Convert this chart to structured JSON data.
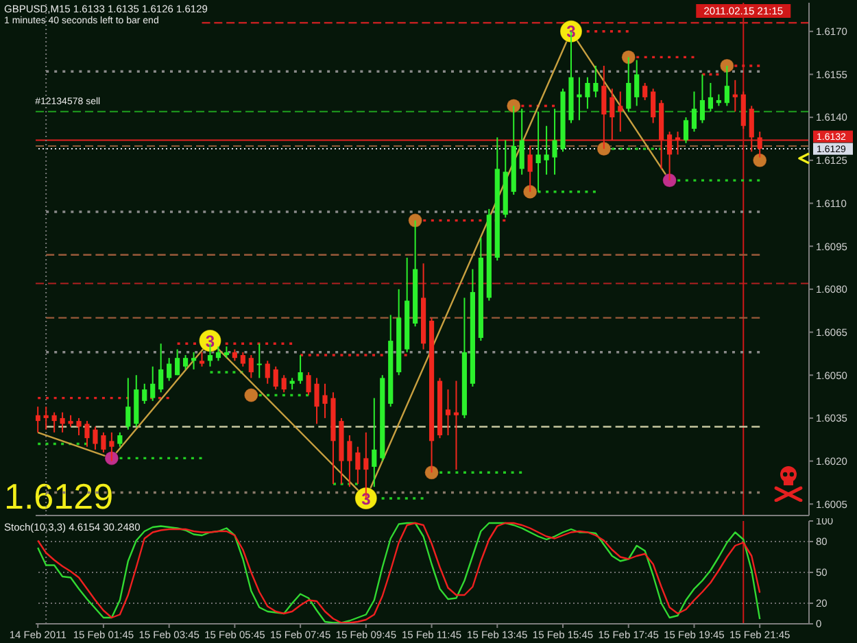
{
  "chart_data": [
    {
      "type": "candlestick",
      "title": "GBPUSD,M15 1.6133 1.6135 1.6126 1.6129",
      "subtitle": "1 minutes 40 seconds left to bar end",
      "x": [
        "2011-02-14T23:45",
        "2011-02-15T00:00",
        "2011-02-15T00:15",
        "2011-02-15T00:30",
        "2011-02-15T00:45",
        "2011-02-15T01:00",
        "2011-02-15T01:15",
        "2011-02-15T01:30",
        "2011-02-15T01:45",
        "2011-02-15T02:00",
        "2011-02-15T02:15",
        "2011-02-15T02:30",
        "2011-02-15T02:45",
        "2011-02-15T03:00",
        "2011-02-15T03:15",
        "2011-02-15T03:30",
        "2011-02-15T03:45",
        "2011-02-15T04:00",
        "2011-02-15T04:15",
        "2011-02-15T04:30",
        "2011-02-15T04:45",
        "2011-02-15T05:00",
        "2011-02-15T05:15",
        "2011-02-15T05:30",
        "2011-02-15T05:45",
        "2011-02-15T06:00",
        "2011-02-15T06:15",
        "2011-02-15T06:30",
        "2011-02-15T06:45",
        "2011-02-15T07:00",
        "2011-02-15T07:15",
        "2011-02-15T07:30",
        "2011-02-15T07:45",
        "2011-02-15T08:00",
        "2011-02-15T08:15",
        "2011-02-15T08:30",
        "2011-02-15T08:45",
        "2011-02-15T09:00",
        "2011-02-15T09:15",
        "2011-02-15T09:30",
        "2011-02-15T09:45",
        "2011-02-15T10:00",
        "2011-02-15T10:15",
        "2011-02-15T10:30",
        "2011-02-15T10:45",
        "2011-02-15T11:00",
        "2011-02-15T11:15",
        "2011-02-15T11:30",
        "2011-02-15T11:45",
        "2011-02-15T12:00",
        "2011-02-15T12:15",
        "2011-02-15T12:30",
        "2011-02-15T12:45",
        "2011-02-15T13:00",
        "2011-02-15T13:15",
        "2011-02-15T13:30",
        "2011-02-15T13:45",
        "2011-02-15T14:00",
        "2011-02-15T14:15",
        "2011-02-15T14:30",
        "2011-02-15T14:45",
        "2011-02-15T15:00",
        "2011-02-15T15:15",
        "2011-02-15T15:30",
        "2011-02-15T15:45",
        "2011-02-15T16:00",
        "2011-02-15T16:15",
        "2011-02-15T16:30",
        "2011-02-15T16:45",
        "2011-02-15T17:00",
        "2011-02-15T17:15",
        "2011-02-15T17:30",
        "2011-02-15T17:45",
        "2011-02-15T18:00",
        "2011-02-15T18:15",
        "2011-02-15T18:30",
        "2011-02-15T18:45",
        "2011-02-15T19:00",
        "2011-02-15T19:15",
        "2011-02-15T19:30",
        "2011-02-15T19:45",
        "2011-02-15T20:00",
        "2011-02-15T20:15",
        "2011-02-15T20:30",
        "2011-02-15T20:45",
        "2011-02-15T21:00",
        "2011-02-15T21:15",
        "2011-02-15T21:30",
        "2011-02-15T21:45"
      ],
      "ohlc": [
        [
          1.6036,
          1.6039,
          1.603,
          1.6034
        ],
        [
          1.6036,
          1.6039,
          1.6031,
          1.6035
        ],
        [
          1.6036,
          1.6037,
          1.603,
          1.6034
        ],
        [
          1.6035,
          1.6037,
          1.603,
          1.6033
        ],
        [
          1.6034,
          1.6036,
          1.6032,
          1.6033
        ],
        [
          1.6034,
          1.6035,
          1.6029,
          1.6032
        ],
        [
          1.6033,
          1.6034,
          1.6025,
          1.6028
        ],
        [
          1.6031,
          1.6032,
          1.6024,
          1.6026
        ],
        [
          1.6029,
          1.603,
          1.6023,
          1.6024
        ],
        [
          1.6027,
          1.603,
          1.602,
          1.6025
        ],
        [
          1.6026,
          1.603,
          1.6025,
          1.6029
        ],
        [
          1.6032,
          1.6049,
          1.6031,
          1.6039
        ],
        [
          1.6033,
          1.605,
          1.6032,
          1.6045
        ],
        [
          1.6041,
          1.6047,
          1.604,
          1.6045
        ],
        [
          1.6042,
          1.6053,
          1.6041,
          1.6047
        ],
        [
          1.6045,
          1.6061,
          1.6044,
          1.6052
        ],
        [
          1.6049,
          1.6056,
          1.6048,
          1.6054
        ],
        [
          1.605,
          1.6059,
          1.605,
          1.6056
        ],
        [
          1.6053,
          1.6057,
          1.6052,
          1.6056
        ],
        [
          1.6055,
          1.6058,
          1.6052,
          1.6056
        ],
        [
          1.6055,
          1.6058,
          1.6053,
          1.6054
        ],
        [
          1.6055,
          1.6061,
          1.6053,
          1.6057
        ],
        [
          1.6056,
          1.606,
          1.6055,
          1.6058
        ],
        [
          1.6057,
          1.606,
          1.6056,
          1.6058
        ],
        [
          1.6058,
          1.6059,
          1.6055,
          1.6056
        ],
        [
          1.6057,
          1.6058,
          1.6053,
          1.6054
        ],
        [
          1.6056,
          1.6057,
          1.6049,
          1.6051
        ],
        [
          1.6054,
          1.6061,
          1.6049,
          1.6054
        ],
        [
          1.6054,
          1.6055,
          1.6047,
          1.6049
        ],
        [
          1.6052,
          1.6053,
          1.6045,
          1.6046
        ],
        [
          1.6049,
          1.605,
          1.6044,
          1.6045
        ],
        [
          1.6047,
          1.6049,
          1.6045,
          1.6048
        ],
        [
          1.6048,
          1.6057,
          1.6047,
          1.6051
        ],
        [
          1.605,
          1.6051,
          1.6043,
          1.6044
        ],
        [
          1.6047,
          1.6049,
          1.6033,
          1.6039
        ],
        [
          1.6043,
          1.6047,
          1.6035,
          1.604
        ],
        [
          1.6042,
          1.6044,
          1.6012,
          1.6027
        ],
        [
          1.6034,
          1.6035,
          1.6012,
          1.602
        ],
        [
          1.6027,
          1.6029,
          1.6011,
          1.602
        ],
        [
          1.6023,
          1.6025,
          1.6012,
          1.6017
        ],
        [
          1.6021,
          1.603,
          1.6007,
          1.6017
        ],
        [
          1.6018,
          1.6042,
          1.6011,
          1.6024
        ],
        [
          1.6021,
          1.605,
          1.602,
          1.6049
        ],
        [
          1.604,
          1.6071,
          1.6039,
          1.6062
        ],
        [
          1.6051,
          1.608,
          1.605,
          1.607
        ],
        [
          1.6059,
          1.6091,
          1.6058,
          1.6076
        ],
        [
          1.6068,
          1.6104,
          1.6067,
          1.6087
        ],
        [
          1.6077,
          1.6089,
          1.6059,
          1.6061
        ],
        [
          1.6069,
          1.607,
          1.6016,
          1.6027
        ],
        [
          1.6048,
          1.6049,
          1.6028,
          1.6029
        ],
        [
          1.6038,
          1.6045,
          1.6029,
          1.6036
        ],
        [
          1.6037,
          1.6048,
          1.6017,
          1.6036
        ],
        [
          1.6036,
          1.6077,
          1.6035,
          1.6058
        ],
        [
          1.6047,
          1.6087,
          1.6046,
          1.6079
        ],
        [
          1.6063,
          1.6098,
          1.6062,
          1.6091
        ],
        [
          1.6077,
          1.6108,
          1.6076,
          1.6106
        ],
        [
          1.6091,
          1.6133,
          1.609,
          1.6122
        ],
        [
          1.6106,
          1.6132,
          1.6105,
          1.6121
        ],
        [
          1.6114,
          1.6144,
          1.6113,
          1.613
        ],
        [
          1.6122,
          1.6143,
          1.612,
          1.6132
        ],
        [
          1.6127,
          1.613,
          1.6114,
          1.6121
        ],
        [
          1.6124,
          1.6142,
          1.6114,
          1.6127
        ],
        [
          1.6125,
          1.6137,
          1.612,
          1.6127
        ],
        [
          1.6126,
          1.6143,
          1.612,
          1.6132
        ],
        [
          1.6129,
          1.615,
          1.6128,
          1.6149
        ],
        [
          1.6139,
          1.617,
          1.6138,
          1.6154
        ],
        [
          1.6147,
          1.6154,
          1.6139,
          1.6148
        ],
        [
          1.6147,
          1.6154,
          1.6143,
          1.6152
        ],
        [
          1.6149,
          1.6158,
          1.6147,
          1.6152
        ],
        [
          1.6151,
          1.6158,
          1.6129,
          1.6141
        ],
        [
          1.6147,
          1.615,
          1.6132,
          1.614
        ],
        [
          1.6144,
          1.6149,
          1.6135,
          1.6142
        ],
        [
          1.6143,
          1.6161,
          1.6142,
          1.6152
        ],
        [
          1.6147,
          1.616,
          1.6144,
          1.6155
        ],
        [
          1.6151,
          1.6152,
          1.6146,
          1.6147
        ],
        [
          1.6149,
          1.615,
          1.6138,
          1.614
        ],
        [
          1.6145,
          1.6146,
          1.6122,
          1.6132
        ],
        [
          1.6134,
          1.6135,
          1.6118,
          1.6127
        ],
        [
          1.6133,
          1.6135,
          1.6127,
          1.6132
        ],
        [
          1.6132,
          1.614,
          1.6131,
          1.6139
        ],
        [
          1.6136,
          1.6149,
          1.6135,
          1.6143
        ],
        [
          1.6139,
          1.6155,
          1.6138,
          1.6146
        ],
        [
          1.6143,
          1.6152,
          1.6142,
          1.6147
        ],
        [
          1.6145,
          1.6148,
          1.6144,
          1.6146
        ],
        [
          1.6145,
          1.6158,
          1.6144,
          1.6151
        ],
        [
          1.6148,
          1.6153,
          1.6142,
          1.6147
        ],
        [
          1.6148,
          1.6149,
          1.6136,
          1.6137
        ],
        [
          1.6143,
          1.6144,
          1.6128,
          1.6133
        ],
        [
          1.6133,
          1.6135,
          1.6126,
          1.6129
        ]
      ],
      "colors": [
        "#f0281e",
        "#f0281e",
        "#f0281e",
        "#f0281e",
        "#f0281e",
        "#f0281e",
        "#f0281e",
        "#f0281e",
        "#f0281e",
        "#f0281e",
        "#2cf02c",
        "#2cf02c",
        "#2cf02c",
        "#2cf02c",
        "#2cf02c",
        "#2cf02c",
        "#2cf02c",
        "#2cf02c",
        "#2cf02c",
        "#2cf02c",
        "#f0281e",
        "#2cf02c",
        "#2cf02c",
        "#2cf02c",
        "#f0281e",
        "#f0281e",
        "#f0281e",
        "#2cf02c",
        "#f0281e",
        "#f0281e",
        "#f0281e",
        "#2cf02c",
        "#2cf02c",
        "#f0281e",
        "#f0281e",
        "#f0281e",
        "#f0281e",
        "#f0281e",
        "#f0281e",
        "#f0281e",
        "#f0281e",
        "#2cf02c",
        "#2cf02c",
        "#2cf02c",
        "#2cf02c",
        "#2cf02c",
        "#2cf02c",
        "#f0281e",
        "#f0281e",
        "#f0281e",
        "#f0281e",
        "#f0281e",
        "#2cf02c",
        "#2cf02c",
        "#2cf02c",
        "#2cf02c",
        "#2cf02c",
        "#2cf02c",
        "#2cf02c",
        "#2cf02c",
        "#f0281e",
        "#2cf02c",
        "#2cf02c",
        "#2cf02c",
        "#2cf02c",
        "#2cf02c",
        "#2cf02c",
        "#2cf02c",
        "#2cf02c",
        "#f0281e",
        "#f0281e",
        "#f0281e",
        "#2cf02c",
        "#2cf02c",
        "#f0281e",
        "#f0281e",
        "#f0281e",
        "#f0281e",
        "#f0281e",
        "#2cf02c",
        "#2cf02c",
        "#2cf02c",
        "#2cf02c",
        "#2cf02c",
        "#2cf02c",
        "#f0281e",
        "#f0281e",
        "#f0281e",
        "#f0281e"
      ],
      "xlim": [
        "2011-02-14T23:41",
        "2011-02-15T23:15"
      ],
      "ylim": [
        1.6001,
        1.618
      ],
      "yticks": [
        1.6005,
        {
          "value": 1.602,
          "label": "1.6020"
        },
        1.6035,
        {
          "value": 1.605,
          "label": "1.6050"
        },
        1.6065,
        {
          "value": 1.608,
          "label": "1.6080"
        },
        1.6095,
        {
          "value": 1.611,
          "label": "1.6110"
        },
        1.6125,
        {
          "value": 1.614,
          "label": "1.6140"
        },
        1.6155,
        {
          "value": 1.617,
          "label": "1.6170"
        }
      ],
      "tick_labels": "y",
      "series": [
        {
          "type": "line",
          "color": "#8a8a8a",
          "line_style": "dotted",
          "x": [
            "2011-02-15T00:00",
            "2011-02-15T21:45"
          ],
          "values": [
            1.6156,
            1.6156
          ]
        },
        {
          "type": "line",
          "color": "#8a8a8a",
          "line_style": "dotted",
          "x": [
            "2011-02-15T00:00",
            "2011-02-15T21:45"
          ],
          "values": [
            1.6107,
            1.6107
          ]
        },
        {
          "type": "line",
          "color": "#9a5a3a",
          "line_style": "dashed",
          "x": [
            "2011-02-15T00:00",
            "2011-02-15T21:45"
          ],
          "values": [
            1.6092,
            1.6092
          ]
        },
        {
          "type": "line",
          "color": "#9a5a3a",
          "line_style": "dashed",
          "x": [
            "2011-02-15T00:00",
            "2011-02-15T21:45"
          ],
          "values": [
            1.607,
            1.607
          ]
        },
        {
          "type": "line",
          "color": "#8a8a8a",
          "line_style": "dotted",
          "x": [
            "2011-02-15T00:00",
            "2011-02-15T21:45"
          ],
          "values": [
            1.6058,
            1.6058
          ]
        },
        {
          "type": "line",
          "color": "#c8c8a0",
          "line_style": "dashed",
          "x": [
            "2011-02-15T00:00",
            "2011-02-15T21:45"
          ],
          "values": [
            1.6032,
            1.6032
          ]
        },
        {
          "type": "line",
          "color": "#8a7a6a",
          "line_style": "dotted",
          "x": [
            "2011-02-15T00:00",
            "2011-02-15T21:45"
          ],
          "values": [
            1.6009,
            1.6009
          ]
        },
        {
          "type": "line",
          "color": "#c02020",
          "line_style": "dashed",
          "x": [
            "2011-02-15T04:45",
            "2011-02-15T23:15"
          ],
          "values": [
            1.6173,
            1.6173
          ]
        },
        {
          "type": "line",
          "color": "#e02020",
          "line_style": "dotted",
          "x": [
            "2011-02-14T23:45",
            "2011-02-15T03:45"
          ],
          "values": [
            1.6042,
            1.6042
          ]
        },
        {
          "type": "line",
          "color": "#e02020",
          "line_style": "dotted",
          "x": [
            "2011-02-15T04:00",
            "2011-02-15T07:30"
          ],
          "values": [
            1.6061,
            1.6061
          ]
        },
        {
          "type": "line",
          "color": "#e02020",
          "line_style": "dotted",
          "x": [
            "2011-02-15T07:45",
            "2011-02-15T11:00"
          ],
          "values": [
            1.6057,
            1.6057
          ]
        },
        {
          "type": "line",
          "color": "#e02020",
          "line_style": "dotted",
          "x": [
            "2011-02-15T11:15",
            "2011-02-15T14:00"
          ],
          "values": [
            1.6104,
            1.6104
          ]
        },
        {
          "type": "line",
          "color": "#e02020",
          "line_style": "dotted",
          "x": [
            "2011-02-15T14:15",
            "2011-02-15T15:30"
          ],
          "values": [
            1.6144,
            1.6144
          ]
        },
        {
          "type": "line",
          "color": "#e02020",
          "line_style": "dotted",
          "x": [
            "2011-02-15T16:00",
            "2011-02-15T17:45"
          ],
          "values": [
            1.617,
            1.617
          ]
        },
        {
          "type": "line",
          "color": "#e02020",
          "line_style": "dotted",
          "x": [
            "2011-02-15T17:45",
            "2011-02-15T19:45"
          ],
          "values": [
            1.6161,
            1.6161
          ]
        },
        {
          "type": "line",
          "color": "#e02020",
          "line_style": "dotted",
          "x": [
            "2011-02-15T20:00",
            "2011-02-15T20:30"
          ],
          "values": [
            1.6155,
            1.6155
          ]
        },
        {
          "type": "line",
          "color": "#e02020",
          "line_style": "dotted",
          "x": [
            "2011-02-15T20:45",
            "2011-02-15T21:45"
          ],
          "values": [
            1.6158,
            1.6158
          ]
        },
        {
          "type": "line",
          "color": "#22cc22",
          "line_style": "dotted",
          "x": [
            "2011-02-14T23:45",
            "2011-02-15T01:15"
          ],
          "values": [
            1.6026,
            1.6026
          ]
        },
        {
          "type": "line",
          "color": "#22cc22",
          "line_style": "dotted",
          "x": [
            "2011-02-15T02:00",
            "2011-02-15T04:45"
          ],
          "values": [
            1.6021,
            1.6021
          ]
        },
        {
          "type": "line",
          "color": "#22cc22",
          "line_style": "dotted",
          "x": [
            "2011-02-15T05:00",
            "2011-02-15T06:00"
          ],
          "values": [
            1.6051,
            1.6051
          ]
        },
        {
          "type": "line",
          "color": "#22cc22",
          "line_style": "dotted",
          "x": [
            "2011-02-15T06:15",
            "2011-02-15T08:00"
          ],
          "values": [
            1.6043,
            1.6043
          ]
        },
        {
          "type": "line",
          "color": "#22cc22",
          "line_style": "dotted",
          "x": [
            "2011-02-15T08:45",
            "2011-02-15T09:30"
          ],
          "values": [
            1.6012,
            1.6012
          ]
        },
        {
          "type": "line",
          "color": "#22cc22",
          "line_style": "dotted",
          "x": [
            "2011-02-15T09:45",
            "2011-02-15T11:30"
          ],
          "values": [
            1.6007,
            1.6007
          ]
        },
        {
          "type": "line",
          "color": "#22cc22",
          "line_style": "dotted",
          "x": [
            "2011-02-15T11:45",
            "2011-02-15T14:30"
          ],
          "values": [
            1.6016,
            1.6016
          ]
        },
        {
          "type": "line",
          "color": "#22cc22",
          "line_style": "dotted",
          "x": [
            "2011-02-15T14:45",
            "2011-02-15T16:45"
          ],
          "values": [
            1.6114,
            1.6114
          ]
        },
        {
          "type": "line",
          "color": "#22cc22",
          "line_style": "dotted",
          "x": [
            "2011-02-15T17:00",
            "2011-02-15T19:00"
          ],
          "values": [
            1.6129,
            1.6129
          ]
        },
        {
          "type": "line",
          "color": "#22cc22",
          "line_style": "dotted",
          "x": [
            "2011-02-15T19:00",
            "2011-02-15T21:45"
          ],
          "values": [
            1.6118,
            1.6118
          ]
        },
        {
          "type": "line",
          "color": "#c8a040",
          "x": [
            "2011-02-14T23:45",
            "2011-02-15T02:00",
            "2011-02-15T05:00",
            "2011-02-15T09:45",
            "2011-02-15T16:00",
            "2011-02-15T19:00"
          ],
          "values": [
            1.603,
            1.6021,
            1.6062,
            1.6007,
            1.617,
            1.6118
          ]
        },
        {
          "type": "scatter",
          "color": "#c8782a",
          "marker": "circle",
          "x": [
            "2011-02-15T06:15",
            "2011-02-15T11:15",
            "2011-02-15T11:45",
            "2011-02-15T14:15",
            "2011-02-15T14:45",
            "2011-02-15T17:00",
            "2011-02-15T17:45",
            "2011-02-15T20:45",
            "2011-02-15T21:45"
          ],
          "values": [
            1.6043,
            1.6104,
            1.6016,
            1.6144,
            1.6114,
            1.6129,
            1.6161,
            1.6158,
            1.6125
          ]
        },
        {
          "type": "scatter",
          "color": "#c0308c",
          "marker": "circle",
          "x": [
            "2011-02-15T02:00",
            "2011-02-15T19:00"
          ],
          "values": [
            1.6021,
            1.6118
          ]
        },
        {
          "type": "scatter",
          "color": "#f5e90f",
          "marker": "circle",
          "x": [
            "2011-02-15T05:00",
            "2011-02-15T09:45",
            "2011-02-15T16:00"
          ],
          "values": [
            1.6062,
            1.6007,
            1.617
          ]
        }
      ],
      "ref_lines": [
        {
          "axis": "y",
          "value": 1.6142,
          "color": "#1fa01f",
          "line_style": "dashed"
        },
        {
          "axis": "y",
          "value": 1.6132,
          "color": "#e02020",
          "label": "1.6132"
        },
        {
          "axis": "y",
          "value": 1.613,
          "color": "#8a5a3a",
          "line_style": "dashed"
        },
        {
          "axis": "y",
          "value": 1.6129,
          "color": "#d8dce8",
          "line_style": "dotted",
          "label": "1.6129"
        },
        {
          "axis": "y",
          "value": 1.6082,
          "color": "#b02020",
          "line_style": "dashed"
        },
        {
          "axis": "x",
          "value": "2011-02-15T00:00",
          "color": "#7a7a7a",
          "line_style": "dotted"
        },
        {
          "axis": "x",
          "value": "2011-02-15T21:15",
          "color": "#d01818",
          "label": "2011.02.15 21:15"
        }
      ],
      "annotations": [
        "1.6129",
        {
          "text": "#12134578 sell",
          "x": "2011-02-14T23:45",
          "y": 1.6142
        },
        {
          "text": "3",
          "x": "2011-02-15T05:00",
          "y": 1.6062
        },
        {
          "text": "3",
          "x": "2011-02-15T09:45",
          "y": 1.6007
        },
        {
          "text": "3",
          "x": "2011-02-15T16:00",
          "y": 1.617
        }
      ]
    },
    {
      "type": "line",
      "title": "Stoch(10,3,3) 4.6154 30.2480",
      "x": [
        "2011-02-14T23:45",
        "2011-02-15T00:00",
        "2011-02-15T00:15",
        "2011-02-15T00:30",
        "2011-02-15T00:45",
        "2011-02-15T01:00",
        "2011-02-15T01:15",
        "2011-02-15T01:30",
        "2011-02-15T01:45",
        "2011-02-15T02:00",
        "2011-02-15T02:15",
        "2011-02-15T02:30",
        "2011-02-15T02:45",
        "2011-02-15T03:00",
        "2011-02-15T03:15",
        "2011-02-15T03:30",
        "2011-02-15T03:45",
        "2011-02-15T04:00",
        "2011-02-15T04:15",
        "2011-02-15T04:30",
        "2011-02-15T04:45",
        "2011-02-15T05:00",
        "2011-02-15T05:15",
        "2011-02-15T05:30",
        "2011-02-15T05:45",
        "2011-02-15T06:00",
        "2011-02-15T06:15",
        "2011-02-15T06:30",
        "2011-02-15T06:45",
        "2011-02-15T07:00",
        "2011-02-15T07:15",
        "2011-02-15T07:30",
        "2011-02-15T07:45",
        "2011-02-15T08:00",
        "2011-02-15T08:15",
        "2011-02-15T08:30",
        "2011-02-15T08:45",
        "2011-02-15T09:00",
        "2011-02-15T09:15",
        "2011-02-15T09:30",
        "2011-02-15T09:45",
        "2011-02-15T10:00",
        "2011-02-15T10:15",
        "2011-02-15T10:30",
        "2011-02-15T10:45",
        "2011-02-15T11:00",
        "2011-02-15T11:15",
        "2011-02-15T11:30",
        "2011-02-15T11:45",
        "2011-02-15T12:00",
        "2011-02-15T12:15",
        "2011-02-15T12:30",
        "2011-02-15T12:45",
        "2011-02-15T13:00",
        "2011-02-15T13:15",
        "2011-02-15T13:30",
        "2011-02-15T13:45",
        "2011-02-15T14:00",
        "2011-02-15T14:15",
        "2011-02-15T14:30",
        "2011-02-15T14:45",
        "2011-02-15T15:00",
        "2011-02-15T15:15",
        "2011-02-15T15:30",
        "2011-02-15T15:45",
        "2011-02-15T16:00",
        "2011-02-15T16:15",
        "2011-02-15T16:30",
        "2011-02-15T16:45",
        "2011-02-15T17:00",
        "2011-02-15T17:15",
        "2011-02-15T17:30",
        "2011-02-15T17:45",
        "2011-02-15T18:00",
        "2011-02-15T18:15",
        "2011-02-15T18:30",
        "2011-02-15T18:45",
        "2011-02-15T19:00",
        "2011-02-15T19:15",
        "2011-02-15T19:30",
        "2011-02-15T19:45",
        "2011-02-15T20:00",
        "2011-02-15T20:15",
        "2011-02-15T20:30",
        "2011-02-15T20:45",
        "2011-02-15T21:00",
        "2011-02-15T21:15",
        "2011-02-15T21:30",
        "2011-02-15T21:45"
      ],
      "series": [
        {
          "color": "#32d932",
          "values": [
            74,
            57,
            57,
            46,
            45,
            34,
            24,
            15,
            6,
            6,
            23,
            61,
            81,
            90,
            94,
            95,
            94,
            93,
            91,
            87,
            86,
            89,
            90,
            93,
            86,
            63,
            32,
            16,
            12,
            11,
            10,
            20,
            29,
            25,
            13,
            2,
            1,
            1,
            3,
            6,
            9,
            23,
            55,
            83,
            97,
            98,
            98,
            85,
            58,
            34,
            24,
            25,
            42,
            66,
            90,
            98,
            98,
            98,
            96,
            93,
            89,
            85,
            82,
            85,
            89,
            92,
            89,
            89,
            88,
            77,
            66,
            61,
            63,
            76,
            71,
            47,
            20,
            6,
            8,
            23,
            34,
            42,
            52,
            65,
            79,
            89,
            82,
            52,
            4.6154
          ]
        },
        {
          "color": "#f02020",
          "values": [
            81,
            69,
            62,
            56,
            51,
            45,
            34,
            23,
            13,
            6,
            9,
            28,
            55,
            83,
            89,
            91,
            92,
            92,
            92,
            90,
            89,
            89,
            90,
            90,
            86,
            72,
            50,
            31,
            17,
            12,
            10,
            12,
            18,
            23,
            22,
            12,
            5,
            1,
            1,
            2,
            4,
            9,
            27,
            52,
            79,
            96,
            98,
            96,
            78,
            55,
            35,
            28,
            28,
            36,
            61,
            82,
            95,
            98,
            98,
            96,
            93,
            89,
            85,
            83,
            86,
            89,
            90,
            89,
            86,
            81,
            72,
            65,
            63,
            66,
            68,
            58,
            36,
            16,
            10,
            14,
            23,
            31,
            40,
            52,
            65,
            76,
            79,
            66,
            30.248
          ]
        }
      ],
      "xlim": [
        "2011-02-14T23:41",
        "2011-02-15T23:15"
      ],
      "xticks": [
        {
          "value": "2011-02-14T23:45",
          "label": "14 Feb 2011"
        },
        {
          "value": "2011-02-15T01:45",
          "label": "15 Feb 01:45"
        },
        {
          "value": "2011-02-15T03:45",
          "label": "15 Feb 03:45"
        },
        {
          "value": "2011-02-15T05:45",
          "label": "15 Feb 05:45"
        },
        {
          "value": "2011-02-15T07:45",
          "label": "15 Feb 07:45"
        },
        {
          "value": "2011-02-15T09:45",
          "label": "15 Feb 09:45"
        },
        {
          "value": "2011-02-15T11:45",
          "label": "15 Feb 11:45"
        },
        {
          "value": "2011-02-15T13:45",
          "label": "15 Feb 13:45"
        },
        {
          "value": "2011-02-15T15:45",
          "label": "15 Feb 15:45"
        },
        {
          "value": "2011-02-15T17:45",
          "label": "15 Feb 17:45"
        },
        {
          "value": "2011-02-15T19:45",
          "label": "15 Feb 19:45"
        },
        {
          "value": "2011-02-15T21:45",
          "label": "15 Feb 21:45"
        }
      ],
      "ylim": [
        0,
        100
      ],
      "yticks": [
        0,
        20,
        50,
        80,
        100
      ],
      "ref_lines": [
        {
          "axis": "y",
          "value": 80,
          "color": "#6e6e6e",
          "line_style": "dotted"
        },
        {
          "axis": "y",
          "value": 50,
          "color": "#6e6e6e",
          "line_style": "dotted"
        },
        {
          "axis": "y",
          "value": 20,
          "color": "#6e6e6e",
          "line_style": "dotted"
        },
        {
          "axis": "x",
          "value": "2011-02-15T00:00",
          "color": "#7a7a7a",
          "line_style": "dotted"
        },
        {
          "axis": "x",
          "value": "2011-02-15T21:15",
          "color": "#d01818"
        }
      ]
    }
  ]
}
